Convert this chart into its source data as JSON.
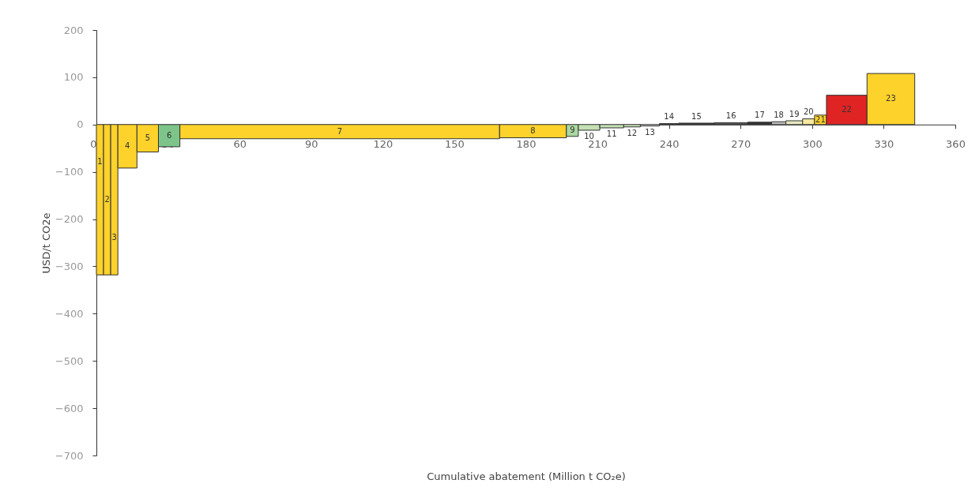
{
  "chart_data": {
    "type": "histogram",
    "bins": [
      0,
      3,
      6,
      9,
      17,
      26,
      35,
      169,
      197,
      202,
      211,
      221,
      228,
      236,
      244,
      259,
      273,
      283,
      289,
      296,
      301,
      306,
      323,
      343
    ],
    "values": [
      -318,
      -318,
      -318,
      -92,
      -58,
      -47,
      -30,
      -28,
      -25,
      -12,
      -7,
      -5,
      -3,
      2,
      3,
      4,
      5,
      6,
      8,
      12,
      20,
      62,
      108
    ],
    "colors": [
      "#fdd22b",
      "#fdd22b",
      "#fdd22b",
      "#fdd22b",
      "#fdd22b",
      "#7dc48a",
      "#fdd22b",
      "#fdd22b",
      "#a9d8a0",
      "#c5e0b4",
      "#c5e0b4",
      "#c5e0b4",
      "#d9d9d9",
      "#333333",
      "#333333",
      "#555555",
      "#333333",
      "#bbbbbb",
      "#e8e8c0",
      "#f5e9a0",
      "#fdd22b",
      "#e02424",
      "#fdd22b"
    ],
    "xlabel": "Cumulative abatement (Million t CO₂e)",
    "ylabel": "USD/t CO2e",
    "xlim": [
      0,
      360
    ],
    "xticks": [
      0,
      30,
      60,
      90,
      120,
      150,
      180,
      210,
      240,
      270,
      300,
      330,
      360
    ],
    "ylim": [
      -700,
      200
    ],
    "yticks": [
      -700,
      -600,
      -500,
      -400,
      -300,
      -200,
      -100,
      0,
      100,
      200
    ],
    "grid": false,
    "legend": false,
    "annotations": [
      "1",
      "2",
      "3",
      "4",
      "5",
      "6",
      "7",
      "8",
      "9",
      "10",
      "11",
      "12",
      "13",
      "14",
      "15",
      "16",
      "17",
      "18",
      "19",
      "20",
      "21",
      "22",
      "23"
    ]
  }
}
